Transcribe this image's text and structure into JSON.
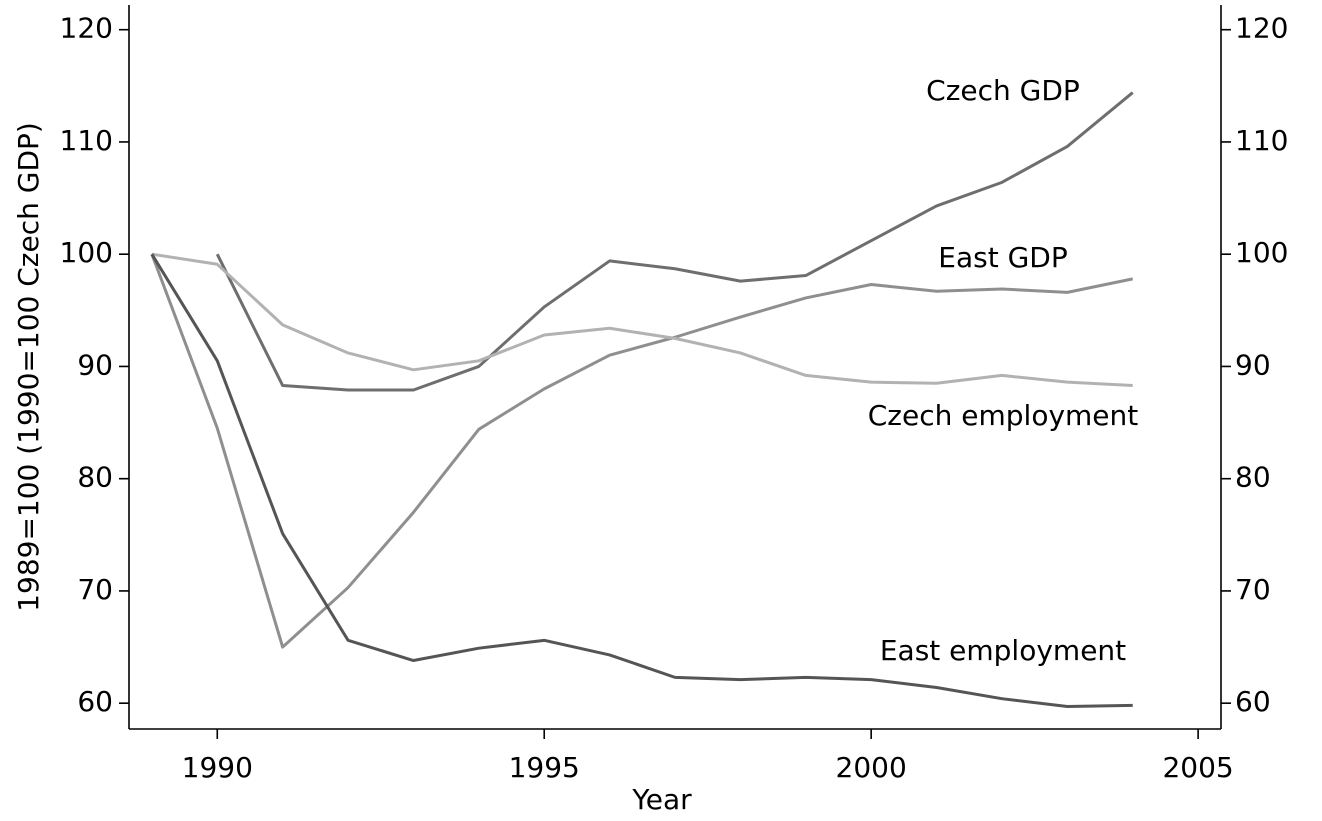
{
  "chart_data": {
    "type": "line",
    "y_label": "1989=100 (1990=100 Czech GDP)",
    "x_label": "Year",
    "x": [
      1989,
      1990,
      1991,
      1992,
      1993,
      1994,
      1995,
      1996,
      1997,
      1998,
      1999,
      2000,
      2001,
      2002,
      2003,
      2004
    ],
    "series": [
      {
        "name": "Czech GDP",
        "color": "#6e6e6e",
        "values": [
          null,
          100,
          88.3,
          87.9,
          87.9,
          90.0,
          95.3,
          99.4,
          98.7,
          97.6,
          98.1,
          101.2,
          104.3,
          106.4,
          109.6,
          114.4
        ]
      },
      {
        "name": "East GDP",
        "color": "#8f8f8f",
        "values": [
          100,
          84.5,
          65.0,
          70.3,
          77.0,
          84.4,
          88.0,
          91.0,
          92.6,
          94.4,
          96.1,
          97.3,
          96.7,
          96.9,
          96.6,
          97.8
        ]
      },
      {
        "name": "Czech employment",
        "color": "#b2b2b2",
        "values": [
          100,
          99.1,
          93.7,
          91.2,
          89.7,
          90.5,
          92.8,
          93.4,
          92.5,
          91.2,
          89.2,
          88.6,
          88.5,
          89.2,
          88.6,
          88.3
        ]
      },
      {
        "name": "East employment",
        "color": "#555555",
        "values": [
          100,
          90.5,
          75.1,
          65.6,
          63.8,
          64.9,
          65.6,
          64.3,
          62.3,
          62.1,
          62.3,
          62.1,
          61.4,
          60.4,
          59.7,
          59.8
        ]
      }
    ],
    "xlim": [
      1988.65,
      2005.35
    ],
    "xticks": [
      1990,
      1995,
      2000,
      2005
    ],
    "ylim": [
      57.7,
      122.2
    ],
    "yticks": [
      60,
      70,
      80,
      90,
      100,
      110,
      120
    ],
    "y2lim": [
      57.7,
      122.2
    ],
    "y2ticks": [
      60,
      70,
      80,
      90,
      100,
      110,
      120
    ],
    "grid": false
  }
}
